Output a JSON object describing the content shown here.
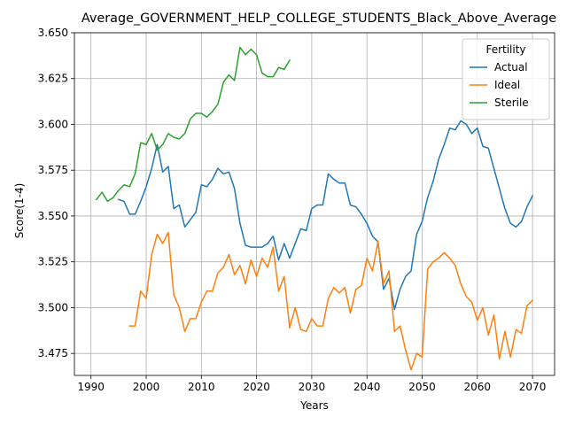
{
  "chart_data": {
    "type": "line",
    "title": "Average_GOVERNMENT_HELP_COLLEGE_STUDENTS_Black_Above_Average",
    "xlabel": "Years",
    "ylabel": "Score(1-4)",
    "xlim": [
      1987,
      2074
    ],
    "ylim": [
      3.463,
      3.65
    ],
    "xticks": [
      1990,
      2000,
      2010,
      2020,
      2030,
      2040,
      2050,
      2060,
      2070
    ],
    "yticks": [
      3.475,
      3.5,
      3.525,
      3.55,
      3.575,
      3.6,
      3.625,
      3.65
    ],
    "ytick_labels": [
      "3.475",
      "3.500",
      "3.525",
      "3.550",
      "3.575",
      "3.600",
      "3.625",
      "3.650"
    ],
    "grid": true,
    "legend": {
      "title": "Fertility",
      "placement": "top-right"
    },
    "series": [
      {
        "name": "Actual",
        "color": "#1f77b4",
        "x": [
          1995,
          1996,
          1997,
          1998,
          1999,
          2000,
          2001,
          2002,
          2003,
          2004,
          2005,
          2006,
          2007,
          2008,
          2009,
          2010,
          2011,
          2012,
          2013,
          2014,
          2015,
          2016,
          2017,
          2018,
          2019,
          2020,
          2021,
          2022,
          2023,
          2024,
          2025,
          2026,
          2027,
          2028,
          2029,
          2030,
          2031,
          2032,
          2033,
          2034,
          2035,
          2036,
          2037,
          2038,
          2039,
          2040,
          2041,
          2042,
          2043,
          2044,
          2045,
          2046,
          2047,
          2048,
          2049,
          2050,
          2051,
          2052,
          2053,
          2054,
          2055,
          2056,
          2057,
          2058,
          2059,
          2060,
          2061,
          2062,
          2063,
          2064,
          2065,
          2066,
          2067,
          2068,
          2069,
          2070
        ],
        "values": [
          3.559,
          3.558,
          3.551,
          3.551,
          3.558,
          3.566,
          3.576,
          3.589,
          3.574,
          3.577,
          3.554,
          3.556,
          3.544,
          3.548,
          3.552,
          3.567,
          3.566,
          3.57,
          3.576,
          3.573,
          3.574,
          3.565,
          3.546,
          3.534,
          3.533,
          3.533,
          3.533,
          3.535,
          3.539,
          3.526,
          3.535,
          3.527,
          3.535,
          3.543,
          3.542,
          3.554,
          3.556,
          3.556,
          3.573,
          3.57,
          3.568,
          3.568,
          3.556,
          3.555,
          3.551,
          3.546,
          3.539,
          3.536,
          3.51,
          3.516,
          3.499,
          3.51,
          3.517,
          3.52,
          3.54,
          3.547,
          3.56,
          3.569,
          3.581,
          3.589,
          3.598,
          3.597,
          3.602,
          3.6,
          3.595,
          3.598,
          3.588,
          3.587,
          3.576,
          3.565,
          3.554,
          3.546,
          3.544,
          3.547,
          3.555,
          3.561
        ]
      },
      {
        "name": "Ideal",
        "color": "#ff7f0e",
        "x": [
          1997,
          1998,
          1999,
          2000,
          2001,
          2002,
          2003,
          2004,
          2005,
          2006,
          2007,
          2008,
          2009,
          2010,
          2011,
          2012,
          2013,
          2014,
          2015,
          2016,
          2017,
          2018,
          2019,
          2020,
          2021,
          2022,
          2023,
          2024,
          2025,
          2026,
          2027,
          2028,
          2029,
          2030,
          2031,
          2032,
          2033,
          2034,
          2035,
          2036,
          2037,
          2038,
          2039,
          2040,
          2041,
          2042,
          2043,
          2044,
          2045,
          2046,
          2047,
          2048,
          2049,
          2050,
          2051,
          2052,
          2053,
          2054,
          2055,
          2056,
          2057,
          2058,
          2059,
          2060,
          2061,
          2062,
          2063,
          2064,
          2065,
          2066,
          2067,
          2068,
          2069,
          2070
        ],
        "values": [
          3.49,
          3.49,
          3.509,
          3.505,
          3.529,
          3.54,
          3.535,
          3.541,
          3.507,
          3.5,
          3.487,
          3.494,
          3.494,
          3.503,
          3.509,
          3.509,
          3.519,
          3.522,
          3.529,
          3.518,
          3.523,
          3.513,
          3.526,
          3.517,
          3.527,
          3.522,
          3.533,
          3.509,
          3.517,
          3.489,
          3.5,
          3.488,
          3.487,
          3.494,
          3.49,
          3.49,
          3.505,
          3.511,
          3.508,
          3.511,
          3.497,
          3.51,
          3.512,
          3.527,
          3.52,
          3.536,
          3.513,
          3.52,
          3.487,
          3.49,
          3.477,
          3.466,
          3.475,
          3.473,
          3.521,
          3.525,
          3.527,
          3.53,
          3.527,
          3.523,
          3.513,
          3.506,
          3.503,
          3.493,
          3.5,
          3.485,
          3.496,
          3.472,
          3.487,
          3.473,
          3.488,
          3.486,
          3.501,
          3.504
        ]
      },
      {
        "name": "Sterile",
        "color": "#2ca02c",
        "x": [
          1991,
          1992,
          1993,
          1994,
          1995,
          1996,
          1997,
          1998,
          1999,
          2000,
          2001,
          2002,
          2003,
          2004,
          2005,
          2006,
          2007,
          2008,
          2009,
          2010,
          2011,
          2012,
          2013,
          2014,
          2015,
          2016,
          2017,
          2018,
          2019,
          2020,
          2021,
          2022,
          2023,
          2024,
          2025,
          2026
        ],
        "values": [
          3.559,
          3.563,
          3.558,
          3.56,
          3.564,
          3.567,
          3.566,
          3.573,
          3.59,
          3.589,
          3.595,
          3.586,
          3.589,
          3.595,
          3.593,
          3.592,
          3.595,
          3.603,
          3.606,
          3.606,
          3.604,
          3.607,
          3.611,
          3.623,
          3.627,
          3.624,
          3.642,
          3.638,
          3.641,
          3.638,
          3.628,
          3.626,
          3.626,
          3.631,
          3.63,
          3.635
        ]
      }
    ]
  }
}
